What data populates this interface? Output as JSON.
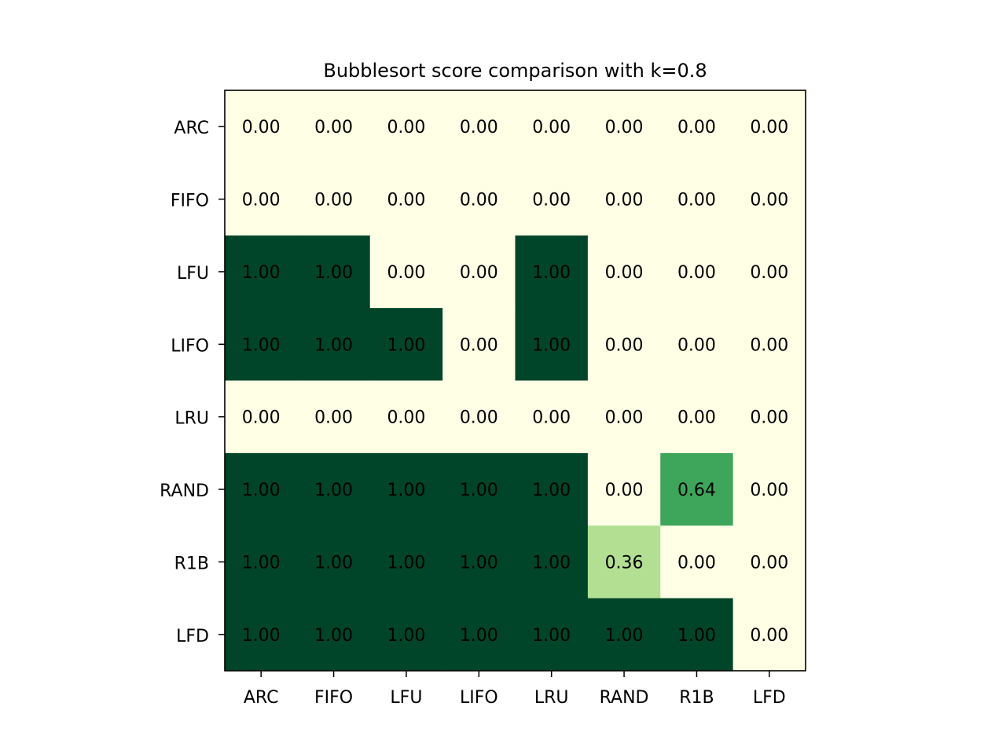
{
  "chart_data": {
    "type": "heatmap",
    "title": "Bubblesort score comparison with k=0.8",
    "xlabel": "",
    "ylabel": "",
    "x_categories": [
      "ARC",
      "FIFO",
      "LFU",
      "LIFO",
      "LRU",
      "RAND",
      "R1B",
      "LFD"
    ],
    "y_categories": [
      "ARC",
      "FIFO",
      "LFU",
      "LIFO",
      "LRU",
      "RAND",
      "R1B",
      "LFD"
    ],
    "values": [
      [
        0.0,
        0.0,
        0.0,
        0.0,
        0.0,
        0.0,
        0.0,
        0.0
      ],
      [
        0.0,
        0.0,
        0.0,
        0.0,
        0.0,
        0.0,
        0.0,
        0.0
      ],
      [
        1.0,
        1.0,
        0.0,
        0.0,
        1.0,
        0.0,
        0.0,
        0.0
      ],
      [
        1.0,
        1.0,
        1.0,
        0.0,
        1.0,
        0.0,
        0.0,
        0.0
      ],
      [
        0.0,
        0.0,
        0.0,
        0.0,
        0.0,
        0.0,
        0.0,
        0.0
      ],
      [
        1.0,
        1.0,
        1.0,
        1.0,
        1.0,
        0.0,
        0.64,
        0.0
      ],
      [
        1.0,
        1.0,
        1.0,
        1.0,
        1.0,
        0.36,
        0.0,
        0.0
      ],
      [
        1.0,
        1.0,
        1.0,
        1.0,
        1.0,
        1.0,
        1.0,
        0.0
      ]
    ],
    "value_range": [
      0,
      1
    ],
    "value_format": "2 decimals",
    "colormap": "YlGn",
    "colors": {
      "low": "#ffffe5",
      "mid": "#b1de8e",
      "high_mid": "#41a75b",
      "high": "#004529"
    },
    "grid": false,
    "colorbar": false
  }
}
